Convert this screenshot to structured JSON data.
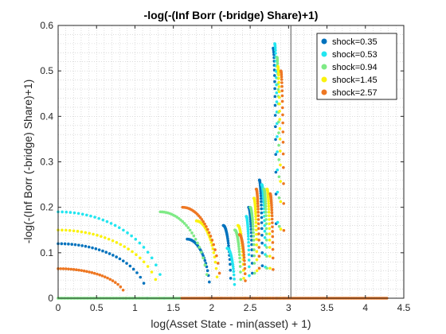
{
  "chart_data": {
    "type": "scatter",
    "title": "-log(-(Inf Borr (-bridge) Share)+1)",
    "xlabel": "log(Asset State - min(asset) + 1)",
    "ylabel": "-log(-(Inf Borr (-bridge) Share)+1)",
    "xlim": [
      0,
      4.5
    ],
    "ylim": [
      0,
      0.6
    ],
    "xticks": [
      "0",
      "0.5",
      "1",
      "1.5",
      "2",
      "2.5",
      "3",
      "3.5",
      "4",
      "4.5"
    ],
    "yticks": [
      "0",
      "0.1",
      "0.2",
      "0.3",
      "0.4",
      "0.5",
      "0.6"
    ],
    "grid": "minor dotted",
    "legend_position": "top-right",
    "vertical_line_x": 3.03,
    "series": [
      {
        "name": "shock=0.35",
        "color": "#0072BD",
        "arcs": [
          {
            "x0": 0.0,
            "x1": 1.16,
            "y0": 0.12
          },
          {
            "x0": 1.68,
            "x1": 1.98,
            "y0": 0.13
          },
          {
            "x0": 2.15,
            "x1": 2.25,
            "y0": 0.16
          },
          {
            "x0": 2.48,
            "x1": 2.53,
            "y0": 0.2
          },
          {
            "x0": 2.62,
            "x1": 2.66,
            "y0": 0.26
          },
          {
            "x0": 2.8,
            "x1": 2.84,
            "y0": 0.55
          }
        ]
      },
      {
        "name": "shock=0.53",
        "color": "#22E6F0",
        "arcs": [
          {
            "x0": 0.0,
            "x1": 1.38,
            "y0": 0.19
          },
          {
            "x0": 2.2,
            "x1": 2.3,
            "y0": 0.11
          },
          {
            "x0": 2.45,
            "x1": 2.49,
            "y0": 0.18
          },
          {
            "x0": 2.65,
            "x1": 2.7,
            "y0": 0.25
          },
          {
            "x0": 2.82,
            "x1": 2.86,
            "y0": 0.56
          }
        ]
      },
      {
        "name": "shock=0.94",
        "color": "#7FEA86",
        "arcs": [
          {
            "x0": 0.0,
            "x1": 1.1,
            "y0": 0.0
          },
          {
            "x0": 1.33,
            "x1": 1.96,
            "y0": 0.19
          },
          {
            "x0": 2.3,
            "x1": 2.38,
            "y0": 0.15
          },
          {
            "x0": 2.5,
            "x1": 2.56,
            "y0": 0.2
          },
          {
            "x0": 2.68,
            "x1": 2.72,
            "y0": 0.24
          },
          {
            "x0": 2.85,
            "x1": 2.88,
            "y0": 0.53
          }
        ]
      },
      {
        "name": "shock=1.45",
        "color": "#FAF20E",
        "arcs": [
          {
            "x0": 0.0,
            "x1": 1.32,
            "y0": 0.15
          },
          {
            "x0": 1.8,
            "x1": 2.08,
            "y0": 0.17
          },
          {
            "x0": 2.34,
            "x1": 2.42,
            "y0": 0.16
          },
          {
            "x0": 2.55,
            "x1": 2.59,
            "y0": 0.22
          },
          {
            "x0": 2.72,
            "x1": 2.76,
            "y0": 0.24
          },
          {
            "x0": 2.86,
            "x1": 2.9,
            "y0": 0.51
          }
        ]
      },
      {
        "name": "shock=2.57",
        "color": "#EE7722",
        "arcs": [
          {
            "x0": 0.0,
            "x1": 0.88,
            "y0": 0.065
          },
          {
            "x0": 1.62,
            "x1": 2.12,
            "y0": 0.2
          },
          {
            "x0": 2.36,
            "x1": 2.44,
            "y0": 0.14
          },
          {
            "x0": 2.58,
            "x1": 2.62,
            "y0": 0.24
          },
          {
            "x0": 2.76,
            "x1": 2.8,
            "y0": 0.23
          },
          {
            "x0": 2.9,
            "x1": 2.94,
            "y0": 0.5
          }
        ],
        "flat": {
          "x0": 1.6,
          "x1": 4.28,
          "y": 0.0
        }
      }
    ]
  }
}
